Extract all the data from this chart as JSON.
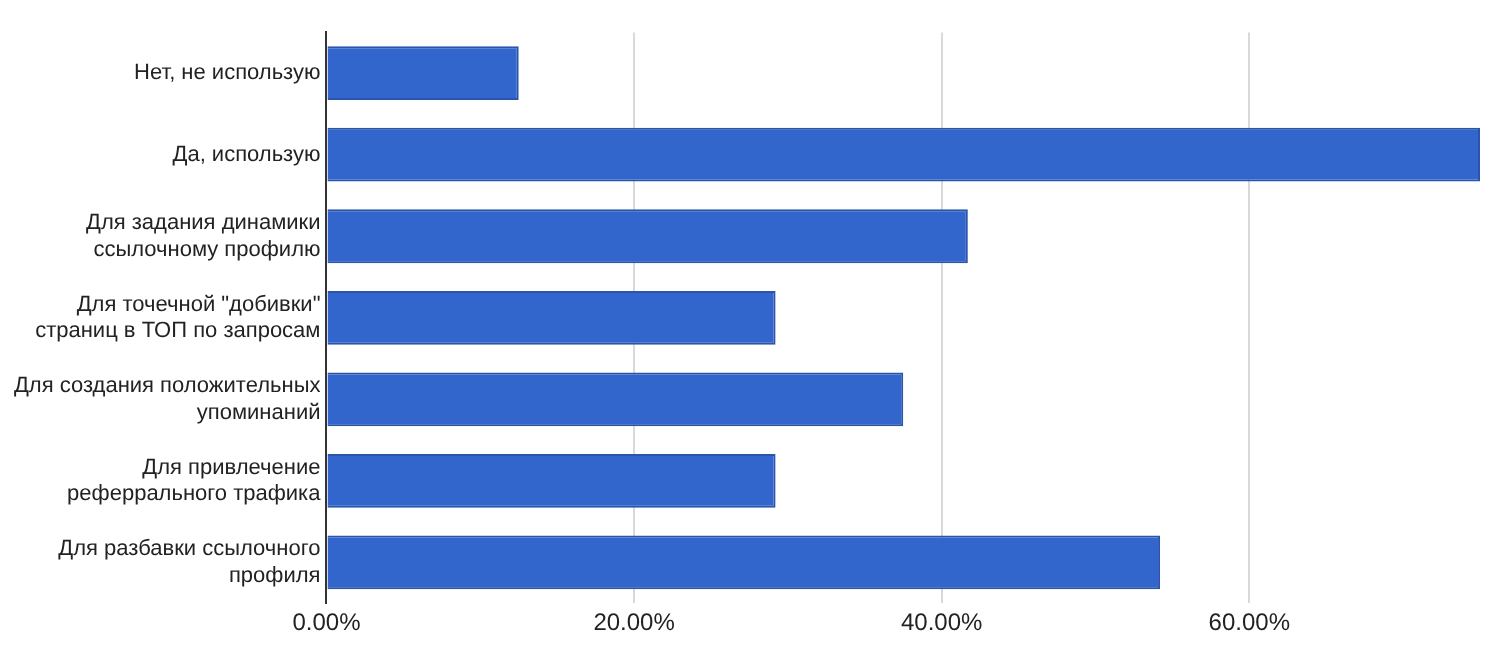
{
  "chart_data": {
    "type": "bar",
    "orientation": "horizontal",
    "categories": [
      "Нет, не использую",
      "Да, использую",
      "Для задания динамики ссылочному профилю",
      "Для точечной \"добивки\" страниц в ТОП по запросам",
      "Для создания положительных упоминаний",
      "Для привлечение реферрального трафика",
      "Для разбавки ссылочного профиля"
    ],
    "values": [
      12.5,
      75,
      41.7,
      29.2,
      37.5,
      29.2,
      54.2
    ],
    "color": "#3366cc",
    "xlim": [
      0,
      75
    ],
    "xticks": [
      {
        "value": 0,
        "label": "0.00%"
      },
      {
        "value": 20,
        "label": "20.00%"
      },
      {
        "value": 40,
        "label": "40.00%"
      },
      {
        "value": 60,
        "label": "60.00%"
      }
    ],
    "grid": "x",
    "legend": false
  }
}
